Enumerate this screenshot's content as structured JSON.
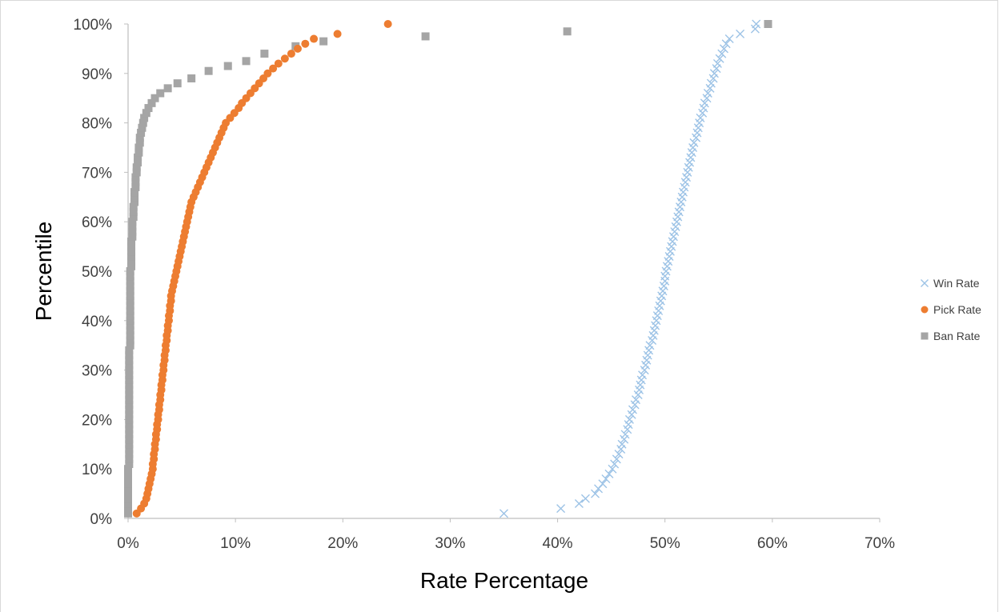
{
  "chart_data": {
    "type": "scatter",
    "xlabel": "Rate Percentage",
    "ylabel": "Percentile",
    "xlim": [
      0,
      70
    ],
    "ylim": [
      0,
      100
    ],
    "x_ticks": [
      "0%",
      "10%",
      "20%",
      "30%",
      "40%",
      "50%",
      "60%",
      "70%"
    ],
    "y_ticks": [
      "0%",
      "10%",
      "20%",
      "30%",
      "40%",
      "50%",
      "60%",
      "70%",
      "80%",
      "90%",
      "100%"
    ],
    "grid": false,
    "legend_position": "right",
    "series": [
      {
        "name": "Win Rate",
        "marker": "x",
        "color": "#9dc3e6",
        "points": [
          [
            35.0,
            1
          ],
          [
            40.3,
            2
          ],
          [
            42.0,
            3
          ],
          [
            42.6,
            4
          ],
          [
            43.5,
            5
          ],
          [
            43.8,
            6
          ],
          [
            44.2,
            7
          ],
          [
            44.5,
            8
          ],
          [
            44.8,
            9
          ],
          [
            45.1,
            10
          ],
          [
            45.3,
            11
          ],
          [
            45.5,
            12
          ],
          [
            45.7,
            13
          ],
          [
            45.9,
            14
          ],
          [
            46.0,
            15
          ],
          [
            46.2,
            16
          ],
          [
            46.3,
            17
          ],
          [
            46.5,
            18
          ],
          [
            46.6,
            19
          ],
          [
            46.7,
            20
          ],
          [
            46.9,
            21
          ],
          [
            47.0,
            22
          ],
          [
            47.2,
            23
          ],
          [
            47.3,
            24
          ],
          [
            47.5,
            25
          ],
          [
            47.6,
            26
          ],
          [
            47.7,
            27
          ],
          [
            47.8,
            28
          ],
          [
            47.9,
            29
          ],
          [
            48.1,
            30
          ],
          [
            48.2,
            31
          ],
          [
            48.3,
            32
          ],
          [
            48.4,
            33
          ],
          [
            48.5,
            34
          ],
          [
            48.6,
            35
          ],
          [
            48.8,
            36
          ],
          [
            48.9,
            37
          ],
          [
            49.0,
            38
          ],
          [
            49.1,
            39
          ],
          [
            49.2,
            40
          ],
          [
            49.3,
            41
          ],
          [
            49.4,
            42
          ],
          [
            49.5,
            43
          ],
          [
            49.6,
            44
          ],
          [
            49.7,
            45
          ],
          [
            49.8,
            46
          ],
          [
            49.9,
            47
          ],
          [
            50.0,
            48
          ],
          [
            50.0,
            49
          ],
          [
            50.1,
            50
          ],
          [
            50.2,
            51
          ],
          [
            50.3,
            52
          ],
          [
            50.4,
            53
          ],
          [
            50.5,
            54
          ],
          [
            50.6,
            55
          ],
          [
            50.7,
            56
          ],
          [
            50.8,
            57
          ],
          [
            50.9,
            58
          ],
          [
            51.0,
            59
          ],
          [
            51.1,
            60
          ],
          [
            51.2,
            61
          ],
          [
            51.3,
            62
          ],
          [
            51.4,
            63
          ],
          [
            51.5,
            64
          ],
          [
            51.6,
            65
          ],
          [
            51.7,
            66
          ],
          [
            51.8,
            67
          ],
          [
            51.9,
            68
          ],
          [
            52.0,
            69
          ],
          [
            52.1,
            70
          ],
          [
            52.2,
            71
          ],
          [
            52.3,
            72
          ],
          [
            52.4,
            73
          ],
          [
            52.5,
            74
          ],
          [
            52.6,
            75
          ],
          [
            52.7,
            76
          ],
          [
            52.9,
            77
          ],
          [
            53.0,
            78
          ],
          [
            53.1,
            79
          ],
          [
            53.2,
            80
          ],
          [
            53.3,
            81
          ],
          [
            53.5,
            82
          ],
          [
            53.6,
            83
          ],
          [
            53.7,
            84
          ],
          [
            53.9,
            85
          ],
          [
            54.0,
            86
          ],
          [
            54.2,
            87
          ],
          [
            54.3,
            88
          ],
          [
            54.5,
            89
          ],
          [
            54.6,
            90
          ],
          [
            54.8,
            91
          ],
          [
            54.9,
            92
          ],
          [
            55.1,
            93
          ],
          [
            55.3,
            94
          ],
          [
            55.5,
            95
          ],
          [
            55.7,
            96
          ],
          [
            56.0,
            97
          ],
          [
            57.0,
            98
          ],
          [
            58.4,
            99
          ],
          [
            58.5,
            100
          ]
        ]
      },
      {
        "name": "Pick Rate",
        "marker": "circle",
        "color": "#ed7d31",
        "points": [
          [
            0.8,
            1
          ],
          [
            1.2,
            2
          ],
          [
            1.5,
            3
          ],
          [
            1.7,
            4
          ],
          [
            1.8,
            5
          ],
          [
            1.9,
            6
          ],
          [
            2.0,
            7
          ],
          [
            2.1,
            8
          ],
          [
            2.2,
            9
          ],
          [
            2.3,
            10
          ],
          [
            2.3,
            11
          ],
          [
            2.4,
            12
          ],
          [
            2.4,
            13
          ],
          [
            2.5,
            14
          ],
          [
            2.5,
            15
          ],
          [
            2.6,
            16
          ],
          [
            2.6,
            17
          ],
          [
            2.7,
            18
          ],
          [
            2.7,
            19
          ],
          [
            2.8,
            20
          ],
          [
            2.8,
            21
          ],
          [
            2.9,
            22
          ],
          [
            2.9,
            23
          ],
          [
            3.0,
            24
          ],
          [
            3.0,
            25
          ],
          [
            3.1,
            26
          ],
          [
            3.1,
            27
          ],
          [
            3.2,
            28
          ],
          [
            3.2,
            29
          ],
          [
            3.3,
            30
          ],
          [
            3.3,
            31
          ],
          [
            3.4,
            32
          ],
          [
            3.4,
            33
          ],
          [
            3.5,
            34
          ],
          [
            3.5,
            35
          ],
          [
            3.6,
            36
          ],
          [
            3.6,
            37
          ],
          [
            3.7,
            38
          ],
          [
            3.7,
            39
          ],
          [
            3.8,
            40
          ],
          [
            3.8,
            41
          ],
          [
            3.9,
            42
          ],
          [
            3.9,
            43
          ],
          [
            4.0,
            44
          ],
          [
            4.0,
            45
          ],
          [
            4.1,
            46
          ],
          [
            4.2,
            47
          ],
          [
            4.3,
            48
          ],
          [
            4.4,
            49
          ],
          [
            4.5,
            50
          ],
          [
            4.6,
            51
          ],
          [
            4.7,
            52
          ],
          [
            4.8,
            53
          ],
          [
            4.9,
            54
          ],
          [
            5.0,
            55
          ],
          [
            5.1,
            56
          ],
          [
            5.2,
            57
          ],
          [
            5.3,
            58
          ],
          [
            5.4,
            59
          ],
          [
            5.5,
            60
          ],
          [
            5.6,
            61
          ],
          [
            5.7,
            62
          ],
          [
            5.8,
            63
          ],
          [
            5.9,
            64
          ],
          [
            6.1,
            65
          ],
          [
            6.3,
            66
          ],
          [
            6.5,
            67
          ],
          [
            6.7,
            68
          ],
          [
            6.9,
            69
          ],
          [
            7.1,
            70
          ],
          [
            7.3,
            71
          ],
          [
            7.5,
            72
          ],
          [
            7.7,
            73
          ],
          [
            7.9,
            74
          ],
          [
            8.1,
            75
          ],
          [
            8.3,
            76
          ],
          [
            8.5,
            77
          ],
          [
            8.7,
            78
          ],
          [
            8.9,
            79
          ],
          [
            9.1,
            80
          ],
          [
            9.5,
            81
          ],
          [
            9.9,
            82
          ],
          [
            10.3,
            83
          ],
          [
            10.6,
            84
          ],
          [
            11.0,
            85
          ],
          [
            11.4,
            86
          ],
          [
            11.8,
            87
          ],
          [
            12.2,
            88
          ],
          [
            12.6,
            89
          ],
          [
            13.0,
            90
          ],
          [
            13.5,
            91
          ],
          [
            14.0,
            92
          ],
          [
            14.6,
            93
          ],
          [
            15.2,
            94
          ],
          [
            15.8,
            95
          ],
          [
            16.5,
            96
          ],
          [
            17.3,
            97
          ],
          [
            19.5,
            98
          ],
          [
            24.2,
            100
          ]
        ]
      },
      {
        "name": "Ban Rate",
        "marker": "square",
        "color": "#a5a5a5",
        "points": [
          [
            0.0,
            1
          ],
          [
            0.0,
            2
          ],
          [
            0.0,
            3
          ],
          [
            0.0,
            4
          ],
          [
            0.0,
            5
          ],
          [
            0.0,
            6
          ],
          [
            0.0,
            7
          ],
          [
            0.0,
            8
          ],
          [
            0.0,
            9
          ],
          [
            0.0,
            10
          ],
          [
            0.1,
            11
          ],
          [
            0.1,
            12
          ],
          [
            0.1,
            13
          ],
          [
            0.1,
            14
          ],
          [
            0.1,
            15
          ],
          [
            0.1,
            16
          ],
          [
            0.1,
            17
          ],
          [
            0.1,
            18
          ],
          [
            0.1,
            19
          ],
          [
            0.1,
            20
          ],
          [
            0.1,
            21
          ],
          [
            0.1,
            22
          ],
          [
            0.1,
            23
          ],
          [
            0.1,
            24
          ],
          [
            0.1,
            25
          ],
          [
            0.1,
            26
          ],
          [
            0.1,
            27
          ],
          [
            0.1,
            28
          ],
          [
            0.1,
            29
          ],
          [
            0.1,
            30
          ],
          [
            0.1,
            31
          ],
          [
            0.1,
            32
          ],
          [
            0.1,
            33
          ],
          [
            0.1,
            34
          ],
          [
            0.2,
            35
          ],
          [
            0.2,
            36
          ],
          [
            0.2,
            37
          ],
          [
            0.2,
            38
          ],
          [
            0.2,
            39
          ],
          [
            0.2,
            40
          ],
          [
            0.2,
            41
          ],
          [
            0.2,
            42
          ],
          [
            0.2,
            43
          ],
          [
            0.2,
            44
          ],
          [
            0.2,
            45
          ],
          [
            0.2,
            46
          ],
          [
            0.2,
            47
          ],
          [
            0.2,
            48
          ],
          [
            0.2,
            49
          ],
          [
            0.2,
            50
          ],
          [
            0.3,
            51
          ],
          [
            0.3,
            52
          ],
          [
            0.3,
            53
          ],
          [
            0.3,
            54
          ],
          [
            0.3,
            55
          ],
          [
            0.3,
            56
          ],
          [
            0.4,
            57
          ],
          [
            0.4,
            58
          ],
          [
            0.4,
            59
          ],
          [
            0.4,
            60
          ],
          [
            0.5,
            61
          ],
          [
            0.5,
            62
          ],
          [
            0.5,
            63
          ],
          [
            0.6,
            64
          ],
          [
            0.6,
            65
          ],
          [
            0.6,
            66
          ],
          [
            0.7,
            67
          ],
          [
            0.7,
            68
          ],
          [
            0.7,
            69
          ],
          [
            0.8,
            70
          ],
          [
            0.8,
            71
          ],
          [
            0.9,
            72
          ],
          [
            0.9,
            73
          ],
          [
            1.0,
            74
          ],
          [
            1.0,
            75
          ],
          [
            1.1,
            76
          ],
          [
            1.1,
            77
          ],
          [
            1.2,
            78
          ],
          [
            1.3,
            79
          ],
          [
            1.4,
            80
          ],
          [
            1.5,
            81
          ],
          [
            1.7,
            82
          ],
          [
            1.9,
            83
          ],
          [
            2.2,
            84
          ],
          [
            2.5,
            85
          ],
          [
            3.0,
            86
          ],
          [
            3.7,
            87
          ],
          [
            4.6,
            88
          ],
          [
            5.9,
            89
          ],
          [
            7.5,
            90.5
          ],
          [
            9.3,
            91.5
          ],
          [
            11.0,
            92.5
          ],
          [
            12.7,
            94
          ],
          [
            15.6,
            95.5
          ],
          [
            18.2,
            96.5
          ],
          [
            27.7,
            97.5
          ],
          [
            40.9,
            98.5
          ],
          [
            59.6,
            100
          ]
        ]
      }
    ]
  }
}
